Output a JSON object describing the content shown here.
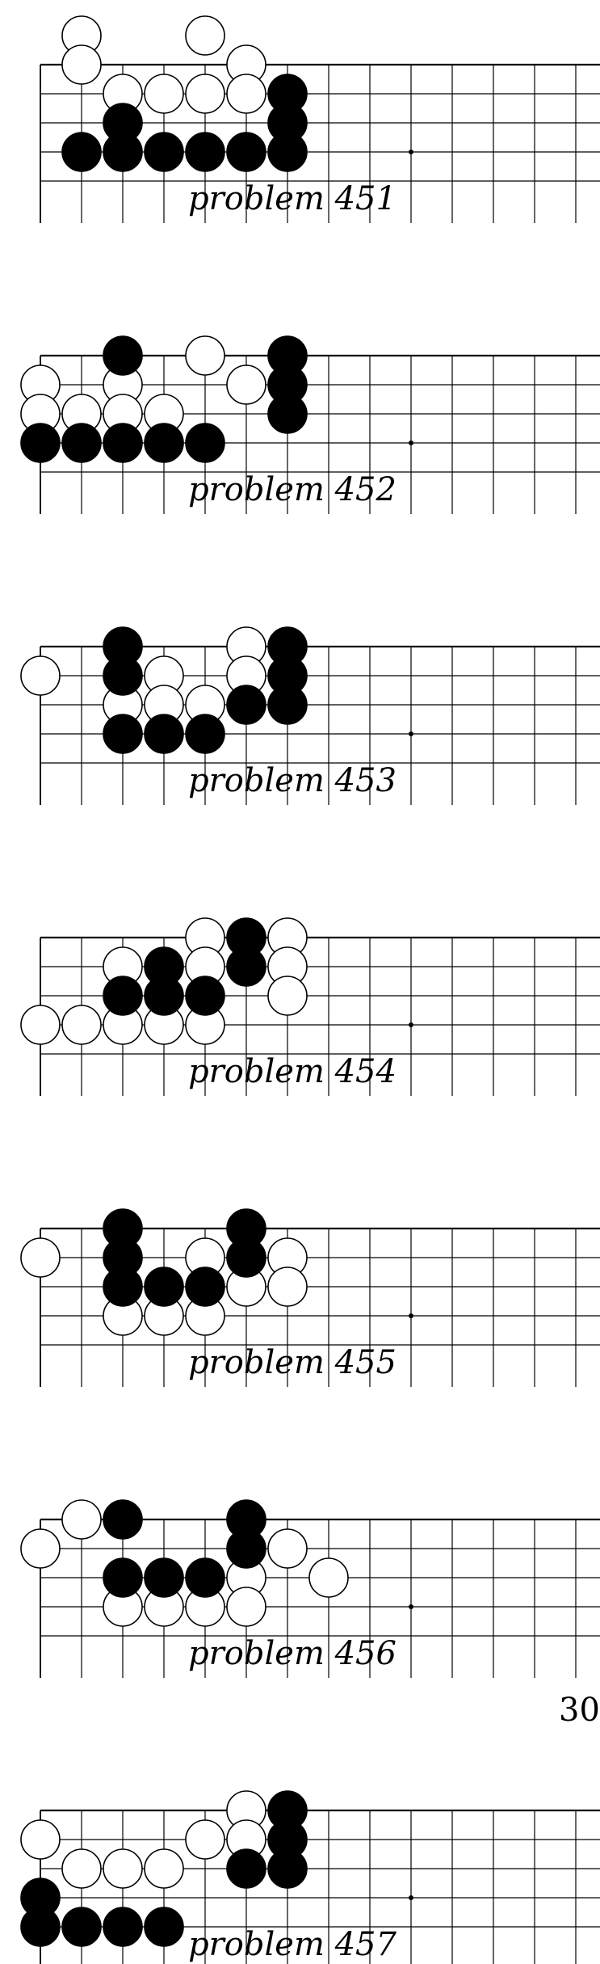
{
  "problems": [
    {
      "caption": "problem 451",
      "black": [
        [
          5,
          1
        ],
        [
          1,
          2
        ],
        [
          5,
          2
        ],
        [
          0,
          3
        ],
        [
          1,
          3
        ],
        [
          2,
          3
        ],
        [
          3,
          3
        ],
        [
          4,
          3
        ],
        [
          5,
          3
        ]
      ],
      "white": [
        [
          0,
          -1
        ],
        [
          3,
          -1
        ],
        [
          0,
          0
        ],
        [
          4,
          0
        ],
        [
          1,
          1
        ],
        [
          2,
          1
        ],
        [
          3,
          1
        ],
        [
          4,
          1
        ]
      ]
    },
    {
      "caption": "problem 452",
      "black": [
        [
          1,
          0
        ],
        [
          5,
          0
        ],
        [
          5,
          1
        ],
        [
          5,
          2
        ],
        [
          -1,
          3
        ],
        [
          0,
          3
        ],
        [
          1,
          3
        ],
        [
          2,
          3
        ],
        [
          3,
          3
        ]
      ],
      "white": [
        [
          3,
          0
        ],
        [
          -1,
          1
        ],
        [
          1,
          1
        ],
        [
          4,
          1
        ],
        [
          -1,
          2
        ],
        [
          0,
          2
        ],
        [
          1,
          2
        ],
        [
          2,
          2
        ]
      ]
    },
    {
      "caption": "problem 453",
      "black": [
        [
          1,
          0
        ],
        [
          5,
          0
        ],
        [
          1,
          1
        ],
        [
          5,
          1
        ],
        [
          4,
          2
        ],
        [
          5,
          2
        ],
        [
          1,
          3
        ],
        [
          2,
          3
        ],
        [
          3,
          3
        ]
      ],
      "white": [
        [
          4,
          0
        ],
        [
          -1,
          1
        ],
        [
          2,
          1
        ],
        [
          4,
          1
        ],
        [
          1,
          2
        ],
        [
          2,
          2
        ],
        [
          3,
          2
        ]
      ]
    },
    {
      "caption": "problem 454",
      "black": [
        [
          4,
          0
        ],
        [
          2,
          1
        ],
        [
          4,
          1
        ],
        [
          1,
          2
        ],
        [
          2,
          2
        ],
        [
          3,
          2
        ]
      ],
      "white": [
        [
          3,
          0
        ],
        [
          5,
          0
        ],
        [
          1,
          1
        ],
        [
          3,
          1
        ],
        [
          5,
          1
        ],
        [
          5,
          2
        ],
        [
          -1,
          3
        ],
        [
          0,
          3
        ],
        [
          1,
          3
        ],
        [
          2,
          3
        ],
        [
          3,
          3
        ]
      ]
    },
    {
      "caption": "problem 455",
      "black": [
        [
          1,
          0
        ],
        [
          4,
          0
        ],
        [
          1,
          1
        ],
        [
          4,
          1
        ],
        [
          1,
          2
        ],
        [
          2,
          2
        ],
        [
          3,
          2
        ]
      ],
      "white": [
        [
          -1,
          1
        ],
        [
          3,
          1
        ],
        [
          5,
          1
        ],
        [
          4,
          2
        ],
        [
          5,
          2
        ],
        [
          1,
          3
        ],
        [
          2,
          3
        ],
        [
          3,
          3
        ]
      ]
    },
    {
      "caption": "problem 456",
      "black": [
        [
          1,
          0
        ],
        [
          4,
          0
        ],
        [
          4,
          1
        ],
        [
          1,
          2
        ],
        [
          2,
          2
        ],
        [
          3,
          2
        ]
      ],
      "white": [
        [
          0,
          0
        ],
        [
          -1,
          1
        ],
        [
          5,
          1
        ],
        [
          4,
          2
        ],
        [
          6,
          2
        ],
        [
          1,
          3
        ],
        [
          2,
          3
        ],
        [
          3,
          3
        ],
        [
          4,
          3
        ]
      ]
    },
    {
      "caption": "problem 457",
      "black": [
        [
          5,
          0
        ],
        [
          5,
          1
        ],
        [
          4,
          2
        ],
        [
          5,
          2
        ],
        [
          -1,
          3
        ],
        [
          -1,
          4
        ],
        [
          0,
          4
        ],
        [
          1,
          4
        ],
        [
          2,
          4
        ]
      ],
      "white": [
        [
          4,
          0
        ],
        [
          -1,
          1
        ],
        [
          3,
          1
        ],
        [
          4,
          1
        ],
        [
          0,
          2
        ],
        [
          1,
          2
        ],
        [
          2,
          2
        ]
      ]
    }
  ],
  "page_number": "30"
}
